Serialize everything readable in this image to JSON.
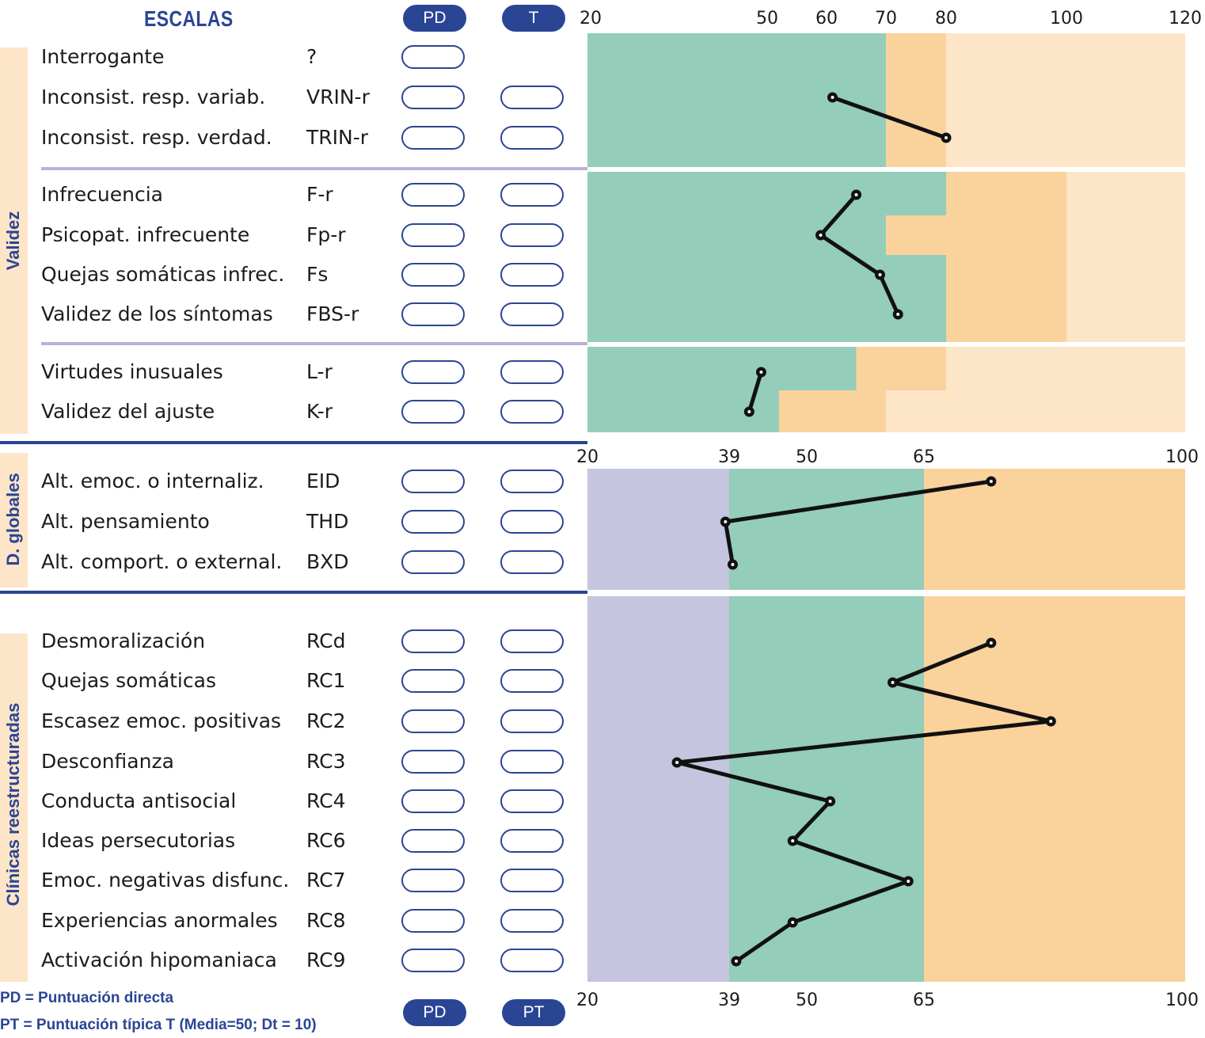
{
  "header": {
    "title": "ESCALAS",
    "pd_badge": "PD",
    "t_badge": "T",
    "pd_badge_bottom": "PD",
    "pt_badge_bottom": "PT"
  },
  "sections": {
    "validez": "Validez",
    "globales": "D. globales",
    "clinicas": "Clínicas reestructuradas"
  },
  "rows": [
    {
      "name": "Interrogante",
      "code": "?"
    },
    {
      "name": "Inconsist. resp. variab.",
      "code": "VRIN-r"
    },
    {
      "name": "Inconsist. resp. verdad.",
      "code": "TRIN-r"
    },
    {
      "name": "Infrecuencia",
      "code": "F-r"
    },
    {
      "name": "Psicopat. infrecuente",
      "code": "Fp-r"
    },
    {
      "name": "Quejas somáticas infrec.",
      "code": "Fs"
    },
    {
      "name": "Validez de los síntomas",
      "code": "FBS-r"
    },
    {
      "name": "Virtudes inusuales",
      "code": "L-r"
    },
    {
      "name": "Validez del ajuste",
      "code": "K-r"
    },
    {
      "name": "Alt. emoc. o internaliz.",
      "code": "EID"
    },
    {
      "name": "Alt. pensamiento",
      "code": "THD"
    },
    {
      "name": "Alt. comport. o external.",
      "code": "BXD"
    },
    {
      "name": "Desmoralización",
      "code": "RCd"
    },
    {
      "name": "Quejas somáticas",
      "code": "RC1"
    },
    {
      "name": "Escasez emoc. positivas",
      "code": "RC2"
    },
    {
      "name": "Desconfianza",
      "code": "RC3"
    },
    {
      "name": "Conducta antisocial",
      "code": "RC4"
    },
    {
      "name": "Ideas persecutorias",
      "code": "RC6"
    },
    {
      "name": "Emoc. negativas disfunc.",
      "code": "RC7"
    },
    {
      "name": "Experiencias anormales",
      "code": "RC8"
    },
    {
      "name": "Activación hipomaniaca",
      "code": "RC9"
    }
  ],
  "legend": {
    "pd": "PD = Puntuación directa",
    "pt": "PT = Puntuación típica T (Media=50; Dt = 10)"
  },
  "axes": {
    "top": [
      "20",
      "50",
      "60",
      "70",
      "80",
      "100",
      "120"
    ],
    "middle": [
      "20",
      "39",
      "50",
      "65",
      "100"
    ],
    "bottom": [
      "20",
      "39",
      "50",
      "65",
      "100"
    ]
  },
  "colors": {
    "green": "#94cdb9",
    "orange": "#fad29c",
    "light_orange": "#fde5c8",
    "lavender": "#c6c5df",
    "navy": "#2b4595"
  },
  "chart_data": [
    {
      "type": "line",
      "title": "",
      "xlim": [
        20,
        120
      ],
      "xticks": [
        20,
        50,
        60,
        70,
        80,
        100,
        120
      ],
      "categories": [
        "VRIN-r",
        "TRIN-r"
      ],
      "values": [
        61,
        80
      ]
    },
    {
      "type": "line",
      "title": "",
      "xlim": [
        20,
        120
      ],
      "categories": [
        "F-r",
        "Fp-r",
        "Fs",
        "FBS-r"
      ],
      "values": [
        65,
        59,
        69,
        72
      ]
    },
    {
      "type": "line",
      "title": "",
      "xlim": [
        20,
        120
      ],
      "categories": [
        "L-r",
        "K-r"
      ],
      "values": [
        49,
        47
      ]
    },
    {
      "type": "line",
      "title": "",
      "xlim": [
        20,
        100
      ],
      "xticks": [
        20,
        39,
        50,
        65,
        100
      ],
      "categories": [
        "EID",
        "THD",
        "BXD"
      ],
      "values": [
        74,
        38.5,
        39.5
      ]
    },
    {
      "type": "line",
      "title": "",
      "xlim": [
        20,
        100
      ],
      "xticks": [
        20,
        39,
        50,
        65,
        100
      ],
      "categories": [
        "RCd",
        "RC1",
        "RC2",
        "RC3",
        "RC4",
        "RC6",
        "RC7",
        "RC8",
        "RC9"
      ],
      "values": [
        74,
        61,
        82,
        32,
        53,
        48,
        63,
        48,
        40
      ]
    }
  ]
}
